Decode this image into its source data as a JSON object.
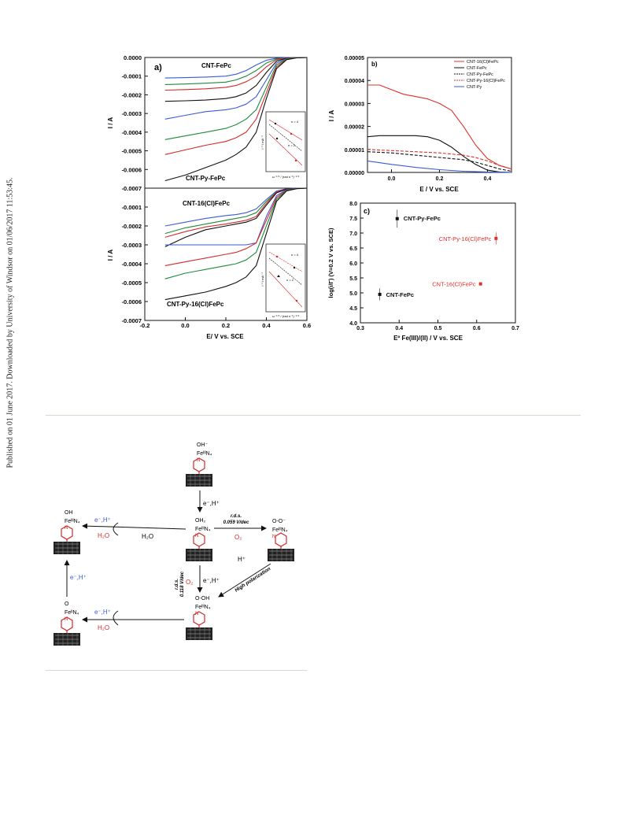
{
  "side_note": "Published on 01 June 2017. Downloaded by University of Windsor on 01/06/2017 11:53:45.",
  "panel_a": {
    "label": "a)",
    "xlabel": "E/ V vs. SCE",
    "ylabel": "I / A",
    "top_labels": [
      "CNT-FePc",
      "CNT-Py-FePc"
    ],
    "bottom_labels": [
      "CNT-16(Cl)FePc",
      "CNT-Py-16(Cl)FePc"
    ],
    "inset_ylabel": "I⁻¹ / mA⁻¹",
    "inset_xlabel": "ω⁻¹ᐟ² / (rad s⁻¹)⁻¹ᐟ²",
    "inset_n_labels": [
      "n = 4",
      "n = 2"
    ]
  },
  "panel_b": {
    "label": "b)",
    "xlabel": "E / V vs. SCE",
    "ylabel": "I / A",
    "legend": [
      "CNT-16(Cl)FePc",
      "CNT-FePc",
      "CNT-Py-FePc",
      "CNT-Py-16(Cl)FePc",
      "CNT-Py"
    ]
  },
  "panel_c": {
    "label": "c)",
    "xlabel": "Eº Fe(III)/(II) / V vs. SCE",
    "ylabel": "log(i/Γ) (V=0.2 V vs. SCE)",
    "points": [
      "CNT-Py-FePc",
      "CNT-Py-16(Cl)FePc",
      "CNT-16(Cl)FePc",
      "CNT-FePc"
    ]
  },
  "chart_data": [
    {
      "type": "line",
      "title": "a) top",
      "xlabel": "E/ V vs. SCE",
      "ylabel": "I / A",
      "xlim": [
        -0.2,
        0.6
      ],
      "ylim": [
        -0.0007,
        0.0
      ],
      "xticks": [
        -0.2,
        0.0,
        0.2,
        0.4,
        0.6
      ],
      "yticks": [
        "0.0000",
        "-0.0001",
        "-0.0002",
        "-0.0003",
        "-0.0004",
        "-0.0005",
        "-0.0006",
        "-0.0007"
      ],
      "series": [
        {
          "color": "#3b5bd6",
          "x": [
            -0.1,
            0.0,
            0.1,
            0.2,
            0.25,
            0.3,
            0.35,
            0.4,
            0.45,
            0.5,
            0.55,
            0.6
          ],
          "y": [
            -0.00011,
            -0.000108,
            -0.000105,
            -0.0001,
            -9e-05,
            -7e-05,
            -4e-05,
            -1.5e-05,
            -4e-06,
            -1e-06,
            0.0,
            0.0
          ]
        },
        {
          "color": "#1e8a3a",
          "x": [
            -0.1,
            0.0,
            0.1,
            0.2,
            0.25,
            0.3,
            0.35,
            0.4,
            0.45,
            0.5,
            0.55,
            0.6
          ],
          "y": [
            -0.000145,
            -0.000142,
            -0.000138,
            -0.000132,
            -0.00012,
            -0.0001,
            -7e-05,
            -3e-05,
            -8e-06,
            -2e-06,
            0.0,
            0.0
          ]
        },
        {
          "color": "#d42a2a",
          "x": [
            -0.1,
            0.0,
            0.1,
            0.2,
            0.25,
            0.3,
            0.35,
            0.4,
            0.45,
            0.5,
            0.55,
            0.6
          ],
          "y": [
            -0.000175,
            -0.000172,
            -0.000168,
            -0.00016,
            -0.00015,
            -0.00013,
            -0.0001,
            -5e-05,
            -1.2e-05,
            -3e-06,
            0.0,
            0.0
          ]
        },
        {
          "color": "#111111",
          "x": [
            -0.1,
            0.0,
            0.1,
            0.2,
            0.25,
            0.3,
            0.35,
            0.4,
            0.45,
            0.5,
            0.55,
            0.6
          ],
          "y": [
            -0.000235,
            -0.000232,
            -0.000228,
            -0.00022,
            -0.00021,
            -0.00019,
            -0.00015,
            -8e-05,
            -2e-05,
            -4e-06,
            0.0,
            0.0
          ]
        },
        {
          "color": "#3b5bd6",
          "x": [
            -0.1,
            0.0,
            0.1,
            0.2,
            0.25,
            0.3,
            0.35,
            0.4,
            0.45,
            0.5,
            0.55,
            0.6
          ],
          "y": [
            -0.00033,
            -0.00031,
            -0.00029,
            -0.00028,
            -0.00027,
            -0.00025,
            -0.00021,
            -0.00012,
            -3e-05,
            -6e-06,
            -1e-06,
            0.0
          ]
        },
        {
          "color": "#1e8a3a",
          "x": [
            -0.1,
            0.0,
            0.1,
            0.2,
            0.25,
            0.3,
            0.35,
            0.4,
            0.45,
            0.5,
            0.55,
            0.6
          ],
          "y": [
            -0.00044,
            -0.00042,
            -0.0004,
            -0.00038,
            -0.00036,
            -0.00033,
            -0.00028,
            -0.00016,
            -4e-05,
            -8e-06,
            -1e-06,
            0.0
          ]
        },
        {
          "color": "#d42a2a",
          "x": [
            -0.1,
            0.0,
            0.1,
            0.2,
            0.25,
            0.3,
            0.35,
            0.4,
            0.45,
            0.5,
            0.55,
            0.6
          ],
          "y": [
            -0.00052,
            -0.000495,
            -0.00047,
            -0.00045,
            -0.00043,
            -0.0004,
            -0.00033,
            -0.00019,
            -5e-05,
            -1e-05,
            -2e-06,
            0.0
          ]
        },
        {
          "color": "#111111",
          "x": [
            -0.1,
            0.0,
            0.1,
            0.2,
            0.25,
            0.3,
            0.35,
            0.4,
            0.45,
            0.5,
            0.55,
            0.6
          ],
          "y": [
            -0.00066,
            -0.00063,
            -0.00059,
            -0.00055,
            -0.00052,
            -0.00048,
            -0.0004,
            -0.00022,
            -6e-05,
            -1.2e-05,
            -2e-06,
            0.0
          ]
        }
      ]
    },
    {
      "type": "line",
      "title": "a) bottom",
      "xlabel": "E/ V vs. SCE",
      "ylabel": "I / A",
      "xlim": [
        -0.2,
        0.6
      ],
      "ylim": [
        -0.0007,
        0.0
      ],
      "xticks": [
        -0.2,
        0.0,
        0.2,
        0.4,
        0.6
      ],
      "yticks": [
        "-0.0001",
        "-0.0002",
        "-0.0003",
        "-0.0004",
        "-0.0005",
        "-0.0006",
        "-0.0007"
      ],
      "series": [
        {
          "color": "#3b5bd6",
          "x": [
            -0.1,
            0.0,
            0.1,
            0.2,
            0.25,
            0.3,
            0.35,
            0.4,
            0.45,
            0.5,
            0.55,
            0.6
          ],
          "y": [
            -0.0002,
            -0.00018,
            -0.00016,
            -0.000145,
            -0.00014,
            -0.00013,
            -0.00011,
            -6e-05,
            -1.5e-05,
            -3e-06,
            0.0,
            0.0
          ]
        },
        {
          "color": "#1e8a3a",
          "x": [
            -0.1,
            0.0,
            0.1,
            0.2,
            0.25,
            0.3,
            0.35,
            0.4,
            0.45,
            0.5,
            0.55,
            0.6
          ],
          "y": [
            -0.00024,
            -0.00021,
            -0.00019,
            -0.00017,
            -0.00016,
            -0.00015,
            -0.00013,
            -7e-05,
            -2e-05,
            -4e-06,
            0.0,
            0.0
          ]
        },
        {
          "color": "#d42a2a",
          "x": [
            -0.1,
            0.0,
            0.1,
            0.2,
            0.25,
            0.3,
            0.35,
            0.4,
            0.45,
            0.5,
            0.55,
            0.6
          ],
          "y": [
            -0.00026,
            -0.00023,
            -0.000205,
            -0.00019,
            -0.00018,
            -0.00017,
            -0.00015,
            -8e-05,
            -2e-05,
            -4e-06,
            0.0,
            0.0
          ]
        },
        {
          "color": "#111111",
          "x": [
            -0.1,
            0.0,
            0.1,
            0.2,
            0.25,
            0.3,
            0.35,
            0.4,
            0.45,
            0.5,
            0.55,
            0.6
          ],
          "y": [
            -0.00031,
            -0.00026,
            -0.00022,
            -0.0002,
            -0.00019,
            -0.00018,
            -0.00016,
            -9e-05,
            -2.5e-05,
            -5e-06,
            0.0,
            0.0
          ]
        },
        {
          "color": "#3b5bd6",
          "x": [
            -0.1,
            0.0,
            0.1,
            0.2,
            0.25,
            0.3,
            0.35,
            0.4,
            0.45,
            0.5,
            0.55,
            0.6
          ],
          "y": [
            -0.0003,
            -0.0003,
            -0.0003,
            -0.0003,
            -0.0003,
            -0.0003,
            -0.00029,
            -0.00015,
            -4e-05,
            -8e-06,
            -1e-06,
            0.0
          ]
        },
        {
          "color": "#d42a2a",
          "x": [
            -0.1,
            0.0,
            0.1,
            0.2,
            0.25,
            0.3,
            0.35,
            0.4,
            0.45,
            0.5,
            0.55,
            0.6
          ],
          "y": [
            -0.00041,
            -0.00039,
            -0.00037,
            -0.00035,
            -0.00034,
            -0.00032,
            -0.00029,
            -0.00017,
            -5e-05,
            -1e-05,
            -2e-06,
            0.0
          ]
        },
        {
          "color": "#1e8a3a",
          "x": [
            -0.1,
            0.0,
            0.1,
            0.2,
            0.25,
            0.3,
            0.35,
            0.4,
            0.45,
            0.5,
            0.55,
            0.6
          ],
          "y": [
            -0.00048,
            -0.00045,
            -0.00043,
            -0.00041,
            -0.0004,
            -0.00038,
            -0.00034,
            -0.0002,
            -6e-05,
            -1.2e-05,
            -2e-06,
            0.0
          ]
        },
        {
          "color": "#111111",
          "x": [
            -0.1,
            0.0,
            0.1,
            0.2,
            0.25,
            0.3,
            0.35,
            0.4,
            0.45,
            0.5,
            0.55,
            0.6
          ],
          "y": [
            -0.00059,
            -0.00057,
            -0.00055,
            -0.00052,
            -0.0005,
            -0.00047,
            -0.00041,
            -0.00024,
            -7e-05,
            -1.4e-05,
            -3e-06,
            0.0
          ]
        }
      ]
    },
    {
      "type": "line",
      "title": "b)",
      "xlabel": "E / V vs. SCE",
      "ylabel": "I / A",
      "xlim": [
        -0.1,
        0.5
      ],
      "ylim": [
        0.0,
        5e-05
      ],
      "xticks": [
        0.0,
        0.2,
        0.4
      ],
      "yticks": [
        "0.00000",
        "0.00001",
        "0.00002",
        "0.00003",
        "0.00004",
        "0.00005"
      ],
      "series": [
        {
          "name": "CNT-16(Cl)FePc",
          "color": "#e0302a",
          "dash": "",
          "x": [
            -0.1,
            -0.05,
            0.0,
            0.05,
            0.1,
            0.15,
            0.2,
            0.25,
            0.3,
            0.35,
            0.4,
            0.45,
            0.5
          ],
          "y": [
            3.8e-05,
            3.8e-05,
            3.6e-05,
            3.4e-05,
            3.3e-05,
            3.2e-05,
            3e-05,
            2.7e-05,
            2e-05,
            1.2e-05,
            6e-06,
            3e-06,
            1.5e-06
          ]
        },
        {
          "name": "CNT-FePc",
          "color": "#111111",
          "dash": "",
          "x": [
            -0.1,
            -0.05,
            0.0,
            0.05,
            0.1,
            0.15,
            0.2,
            0.25,
            0.3,
            0.35,
            0.4,
            0.45,
            0.5
          ],
          "y": [
            1.55e-05,
            1.6e-05,
            1.6e-05,
            1.6e-05,
            1.6e-05,
            1.55e-05,
            1.4e-05,
            1.1e-05,
            7e-06,
            3.5e-06,
            1e-06,
            2e-07,
            0.0
          ]
        },
        {
          "name": "CNT-Py-FePc",
          "color": "#111111",
          "dash": "4,2",
          "x": [
            -0.1,
            0.0,
            0.1,
            0.2,
            0.3,
            0.35,
            0.4,
            0.45,
            0.5
          ],
          "y": [
            9e-06,
            8.5e-06,
            7.5e-06,
            6.5e-06,
            5.5e-06,
            4.5e-06,
            3e-06,
            1.5e-06,
            5e-07
          ]
        },
        {
          "name": "CNT-Py-16(Cl)FePc",
          "color": "#e0302a",
          "dash": "4,2",
          "x": [
            -0.1,
            0.0,
            0.1,
            0.2,
            0.3,
            0.35,
            0.4,
            0.45,
            0.5
          ],
          "y": [
            1e-05,
            9.5e-06,
            9e-06,
            8.5e-06,
            7.5e-06,
            6.5e-06,
            5e-06,
            3e-06,
            1.5e-06
          ]
        },
        {
          "name": "CNT-Py",
          "color": "#3b5bd6",
          "dash": "",
          "x": [
            -0.1,
            0.0,
            0.1,
            0.2,
            0.3,
            0.4,
            0.5
          ],
          "y": [
            5e-06,
            3.5e-06,
            2.2e-06,
            1.2e-06,
            5e-07,
            2e-07,
            0.0
          ]
        }
      ]
    },
    {
      "type": "scatter",
      "title": "c)",
      "xlabel": "Eº Fe(III)/(II) / V vs. SCE",
      "ylabel": "log(i/Γ) (V=0.2 V vs. SCE)",
      "xlim": [
        0.3,
        0.7
      ],
      "ylim": [
        4.0,
        8.0
      ],
      "xticks": [
        0.3,
        0.4,
        0.5,
        0.6,
        0.7
      ],
      "yticks": [
        4.0,
        4.5,
        5.0,
        5.5,
        6.0,
        6.5,
        7.0,
        7.5,
        8.0
      ],
      "points": [
        {
          "name": "CNT-Py-FePc",
          "x": 0.395,
          "y": 7.48,
          "err": 0.3,
          "color": "#111111"
        },
        {
          "name": "CNT-Py-16(Cl)FePc",
          "x": 0.65,
          "y": 6.82,
          "err": 0.2,
          "color": "#e0302a"
        },
        {
          "name": "CNT-16(Cl)FePc",
          "x": 0.61,
          "y": 5.3,
          "err": 0.06,
          "color": "#e0302a"
        },
        {
          "name": "CNT-FePc",
          "x": 0.35,
          "y": 4.95,
          "err": 0.2,
          "color": "#111111"
        }
      ]
    }
  ],
  "scheme": {
    "e_h": "e⁻,H⁺",
    "h2o": "H₂O",
    "h2o_plain": "H₂O",
    "o2": "O₂",
    "h_plus": "H⁺",
    "rds_label": "r.d.s.",
    "rds_059": "0.059 V/dec",
    "rds_118": "0.118 V/dec",
    "high_polarization": "High polarization",
    "fe3n4": "FeᴵᴵᴵN₄",
    "fe2n4": "FeᴵᴵN₄",
    "n": "N",
    "oh_minus": "OH⁻",
    "oh": "OH",
    "oh2": "OH₂",
    "o_o_minus": "O-O⁻",
    "o_oh": "O-OH",
    "o": "O"
  }
}
